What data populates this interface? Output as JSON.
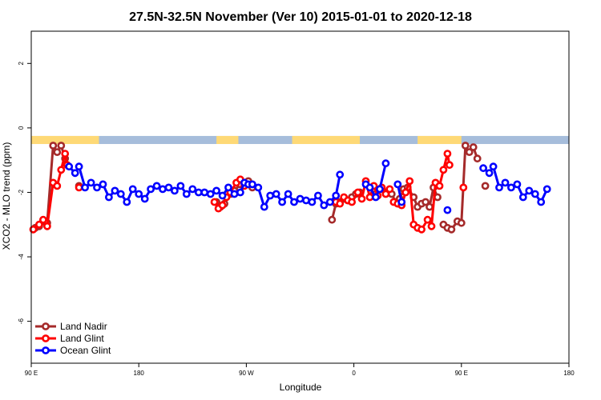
{
  "chart_data": {
    "type": "line",
    "title": "27.5N-32.5N November (Ver 10)   2015-01-01 to 2020-12-18",
    "xlabel": "Longitude",
    "ylabel": "XCO2 - MLO trend (ppm)",
    "xlim": [
      -90,
      180
    ],
    "ylim": [
      -7.3,
      3
    ],
    "x_ticks": [
      {
        "value": -90,
        "label": "90 E"
      },
      {
        "value": -36,
        "label": "180"
      },
      {
        "value": 18,
        "label": "90 W"
      },
      {
        "value": 72,
        "label": "0"
      },
      {
        "value": 126,
        "label": "90 E"
      },
      {
        "value": 180,
        "label": "180"
      }
    ],
    "y_ticks": [
      {
        "value": 2,
        "label": "2"
      },
      {
        "value": 0,
        "label": "0"
      },
      {
        "value": -2,
        "label": "-2"
      },
      {
        "value": -4,
        "label": "-4"
      },
      {
        "value": -6,
        "label": "-6"
      }
    ],
    "legend_position": "bottom-left",
    "land_ocean_strip": {
      "y_top": -0.25,
      "y_bottom": -0.5,
      "ocean_color": "#a6bddb",
      "land_color": "#fed976"
    },
    "land_spans": [
      [
        -90,
        -56
      ],
      [
        3,
        14
      ],
      [
        41,
        75
      ],
      [
        104,
        126
      ]
    ],
    "series": [
      {
        "name": "Land Nadir",
        "color": "#a52a2a",
        "points": [
          [
            -88,
            -3.1
          ],
          [
            -86,
            -3.05
          ],
          [
            -84,
            -2.9
          ],
          [
            -82,
            -2.95
          ],
          [
            -79,
            -0.55
          ],
          [
            -77,
            -0.75
          ],
          [
            -75,
            -0.55
          ],
          [
            -73,
            -0.95
          ],
          [
            null,
            null
          ],
          [
            -66,
            -1.8
          ],
          [
            null,
            null
          ],
          [
            3,
            -2.3
          ],
          [
            5,
            -2.45
          ],
          [
            7,
            -2.35
          ],
          [
            10,
            -2.05
          ],
          [
            12,
            -1.95
          ],
          [
            15,
            -1.75
          ],
          [
            17,
            -1.7
          ],
          [
            19,
            -1.65
          ],
          [
            21,
            -1.85
          ],
          [
            null,
            null
          ],
          [
            61,
            -2.85
          ],
          [
            63,
            -2.35
          ],
          [
            65,
            -2.3
          ],
          [
            67,
            -2.2
          ],
          [
            69,
            -2.25
          ],
          [
            71,
            -2.15
          ],
          [
            73,
            -2.05
          ],
          [
            75,
            -2.0
          ],
          [
            null,
            null
          ],
          [
            83,
            -2.05
          ],
          [
            86,
            -1.9
          ],
          [
            88,
            -2.0
          ],
          [
            91,
            -2.05
          ],
          [
            93,
            -2.3
          ],
          [
            95,
            -2.2
          ],
          [
            97,
            -1.9
          ],
          [
            99,
            -1.85
          ],
          [
            102,
            -2.15
          ],
          [
            104,
            -2.45
          ],
          [
            106,
            -2.35
          ],
          [
            108,
            -2.3
          ],
          [
            110,
            -2.45
          ],
          [
            112,
            -1.85
          ],
          [
            114,
            -2.15
          ],
          [
            null,
            null
          ],
          [
            117,
            -3.0
          ],
          [
            119,
            -3.1
          ],
          [
            121,
            -3.15
          ],
          [
            124,
            -2.9
          ],
          [
            126,
            -2.95
          ],
          [
            128,
            -0.55
          ],
          [
            130,
            -0.75
          ],
          [
            132,
            -0.6
          ],
          [
            134,
            -0.95
          ],
          [
            null,
            null
          ],
          [
            138,
            -1.8
          ]
        ]
      },
      {
        "name": "Land Glint",
        "color": "#ff0000",
        "points": [
          [
            -89,
            -3.15
          ],
          [
            -86,
            -3.0
          ],
          [
            -84,
            -2.85
          ],
          [
            -82,
            -3.05
          ],
          [
            -79,
            -1.7
          ],
          [
            -77,
            -1.8
          ],
          [
            -75,
            -1.3
          ],
          [
            -73,
            -0.8
          ],
          [
            -72,
            -1.15
          ],
          [
            null,
            null
          ],
          [
            -66,
            -1.85
          ],
          [
            null,
            null
          ],
          [
            2,
            -2.3
          ],
          [
            4,
            -2.5
          ],
          [
            6,
            -2.4
          ],
          [
            8,
            -2.15
          ],
          [
            10,
            -2.0
          ],
          [
            13,
            -1.7
          ],
          [
            15,
            -1.6
          ],
          [
            17,
            -1.8
          ],
          [
            null,
            null
          ],
          [
            63,
            -2.3
          ],
          [
            65,
            -2.35
          ],
          [
            67,
            -2.15
          ],
          [
            69,
            -2.25
          ],
          [
            71,
            -2.3
          ],
          [
            74,
            -2.0
          ],
          [
            76,
            -2.2
          ],
          [
            78,
            -1.65
          ],
          [
            80,
            -2.15
          ],
          [
            82,
            -1.8
          ],
          [
            84,
            -2.1
          ],
          [
            86,
            -1.85
          ],
          [
            88,
            -2.05
          ],
          [
            90,
            -1.9
          ],
          [
            null,
            null
          ],
          [
            92,
            -2.3
          ],
          [
            94,
            -2.35
          ],
          [
            96,
            -2.4
          ],
          [
            98,
            -2.0
          ],
          [
            100,
            -1.65
          ],
          [
            102,
            -3.0
          ],
          [
            104,
            -3.1
          ],
          [
            106,
            -3.15
          ],
          [
            109,
            -2.85
          ],
          [
            111,
            -3.05
          ],
          [
            113,
            -1.7
          ],
          [
            115,
            -1.8
          ],
          [
            117,
            -1.3
          ],
          [
            119,
            -0.8
          ],
          [
            120,
            -1.15
          ],
          [
            null,
            null
          ],
          [
            127,
            -1.85
          ]
        ]
      },
      {
        "name": "Ocean Glint",
        "color": "#0000ff",
        "points": [
          [
            -71,
            -1.2
          ],
          [
            -68,
            -1.4
          ],
          [
            -66,
            -1.2
          ],
          [
            -63,
            -1.85
          ],
          [
            -60,
            -1.7
          ],
          [
            -57,
            -1.85
          ],
          [
            -54,
            -1.75
          ],
          [
            -51,
            -2.15
          ],
          [
            -48,
            -1.95
          ],
          [
            -45,
            -2.05
          ],
          [
            -42,
            -2.3
          ],
          [
            -39,
            -1.9
          ],
          [
            -36,
            -2.05
          ],
          [
            -33,
            -2.2
          ],
          [
            -30,
            -1.9
          ],
          [
            -27,
            -1.8
          ],
          [
            -24,
            -1.9
          ],
          [
            -21,
            -1.85
          ],
          [
            -18,
            -1.95
          ],
          [
            -15,
            -1.8
          ],
          [
            -12,
            -2.05
          ],
          [
            -9,
            -1.9
          ],
          [
            -6,
            -2.0
          ],
          [
            -3,
            -2.0
          ],
          [
            0,
            -2.05
          ],
          [
            3,
            -1.95
          ],
          [
            6,
            -2.1
          ],
          [
            9,
            -1.85
          ],
          [
            12,
            -2.05
          ],
          [
            15,
            -2.0
          ],
          [
            17,
            -1.7
          ],
          [
            19,
            -1.75
          ],
          [
            21,
            -1.75
          ],
          [
            24,
            -1.85
          ],
          [
            27,
            -2.45
          ],
          [
            30,
            -2.1
          ],
          [
            33,
            -2.05
          ],
          [
            36,
            -2.3
          ],
          [
            39,
            -2.05
          ],
          [
            42,
            -2.3
          ],
          [
            45,
            -2.2
          ],
          [
            48,
            -2.25
          ],
          [
            51,
            -2.3
          ],
          [
            54,
            -2.1
          ],
          [
            57,
            -2.4
          ],
          [
            60,
            -2.3
          ],
          [
            63,
            -2.1
          ],
          [
            65,
            -1.45
          ],
          [
            null,
            null
          ],
          [
            78,
            -1.75
          ],
          [
            80,
            -1.85
          ],
          [
            83,
            -2.15
          ],
          [
            85,
            -1.9
          ],
          [
            88,
            -1.1
          ],
          [
            null,
            null
          ],
          [
            94,
            -1.75
          ],
          [
            96,
            -2.3
          ],
          [
            null,
            null
          ],
          [
            119,
            -2.55
          ],
          [
            null,
            null
          ],
          [
            137,
            -1.25
          ],
          [
            140,
            -1.4
          ],
          [
            142,
            -1.2
          ],
          [
            145,
            -1.85
          ],
          [
            148,
            -1.7
          ],
          [
            151,
            -1.85
          ],
          [
            154,
            -1.75
          ],
          [
            157,
            -2.15
          ],
          [
            160,
            -1.95
          ],
          [
            163,
            -2.05
          ],
          [
            166,
            -2.3
          ],
          [
            169,
            -1.9
          ]
        ]
      }
    ]
  }
}
